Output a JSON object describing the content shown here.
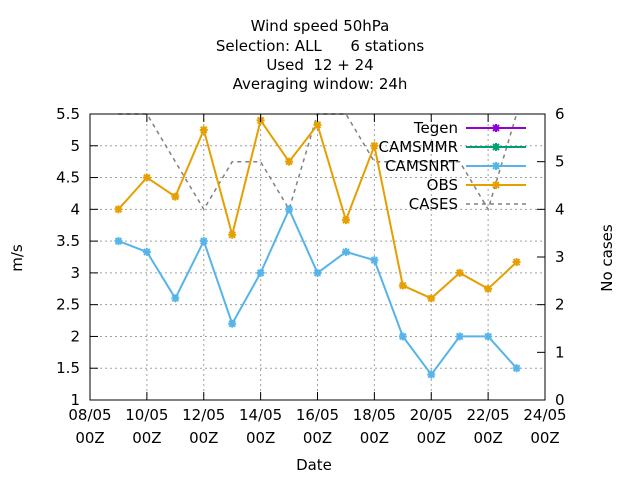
{
  "title_lines": [
    "Wind speed 50hPa",
    "Selection: ALL      6 stations",
    "Used  12 + 24",
    "Averaging window: 24h"
  ],
  "chart_data": {
    "type": "line",
    "xlabel": "Date",
    "ylabel": "m/s",
    "y2label": "No cases",
    "ylim": [
      1,
      5.5
    ],
    "y2lim": [
      0,
      6
    ],
    "yticks": [
      1,
      1.5,
      2,
      2.5,
      3,
      3.5,
      4,
      4.5,
      5,
      5.5
    ],
    "y2ticks": [
      0,
      1,
      2,
      3,
      4,
      5,
      6
    ],
    "xlim_days": [
      8,
      24
    ],
    "xticks": [
      {
        "day": 8,
        "top": "08/05",
        "bottom": "00Z"
      },
      {
        "day": 10,
        "top": "10/05",
        "bottom": "00Z"
      },
      {
        "day": 12,
        "top": "12/05",
        "bottom": "00Z"
      },
      {
        "day": 14,
        "top": "14/05",
        "bottom": "00Z"
      },
      {
        "day": 16,
        "top": "16/05",
        "bottom": "00Z"
      },
      {
        "day": 18,
        "top": "18/05",
        "bottom": "00Z"
      },
      {
        "day": 20,
        "top": "20/05",
        "bottom": "00Z"
      },
      {
        "day": 22,
        "top": "22/05",
        "bottom": "00Z"
      },
      {
        "day": 24,
        "top": "24/05",
        "bottom": "00Z"
      }
    ],
    "x_days": [
      9,
      10,
      11,
      12,
      13,
      14,
      15,
      16,
      17,
      18,
      19,
      20,
      21,
      22,
      23
    ],
    "grid": true,
    "legend_position": "top-right",
    "series": [
      {
        "name": "Tegen",
        "color": "#9400d3",
        "axis": "y1",
        "style": "line-points",
        "values": []
      },
      {
        "name": "CAMSMMR",
        "color": "#009e73",
        "axis": "y1",
        "style": "line-points",
        "values": []
      },
      {
        "name": "CAMSNRT",
        "color": "#56b4e9",
        "axis": "y1",
        "style": "line-points",
        "values": [
          3.5,
          3.33,
          2.6,
          3.5,
          2.2,
          3.0,
          4.0,
          3.0,
          3.33,
          3.2,
          2.0,
          1.4,
          2.0,
          2.0,
          1.5
        ]
      },
      {
        "name": "OBS",
        "color": "#e69f00",
        "axis": "y1",
        "style": "line-points",
        "values": [
          4.0,
          4.5,
          4.2,
          5.25,
          3.6,
          5.4,
          4.75,
          5.33,
          3.83,
          5.0,
          2.8,
          2.6,
          3.0,
          2.75,
          3.17
        ]
      },
      {
        "name": "CASES",
        "color": "#808080",
        "axis": "y2",
        "style": "dashed",
        "values": [
          6,
          6,
          5,
          4,
          5,
          5,
          4,
          6,
          6,
          5,
          5,
          5,
          5,
          4,
          6
        ]
      }
    ]
  }
}
